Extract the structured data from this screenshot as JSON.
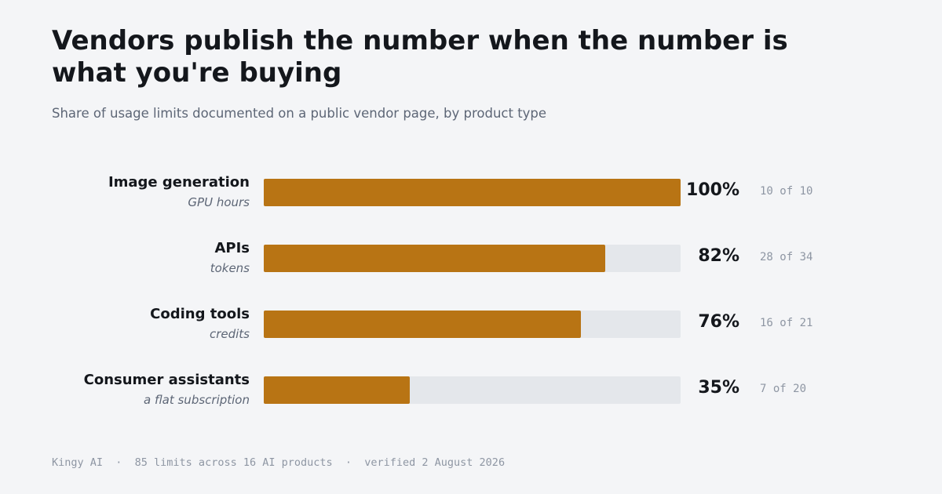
{
  "header": {
    "title": "Vendors publish the number when the number is what you're buying",
    "subtitle": "Share of usage limits documented on a public vendor page, by product type"
  },
  "chart_data": {
    "type": "bar",
    "orientation": "horizontal",
    "title": "Vendors publish the number when the number is what you're buying",
    "subtitle": "Share of usage limits documented on a public vendor page, by product type",
    "xlim": [
      0,
      100
    ],
    "grid": false,
    "bar_color": "#b87414",
    "track_color": "#e4e7eb",
    "categories": [
      "Image generation",
      "APIs",
      "Coding tools",
      "Consumer assistants"
    ],
    "units": [
      "GPU hours",
      "tokens",
      "credits",
      "a flat subscription"
    ],
    "values": [
      100,
      82,
      76,
      35
    ],
    "value_labels": [
      "100%",
      "82%",
      "76%",
      "35%"
    ],
    "counts": [
      "10 of 10",
      "28 of 34",
      "16 of 21",
      "7 of 20"
    ]
  },
  "footer": {
    "text": "Kingy AI  ·  85 limits across 16 AI products  ·  verified 2 August 2026"
  }
}
